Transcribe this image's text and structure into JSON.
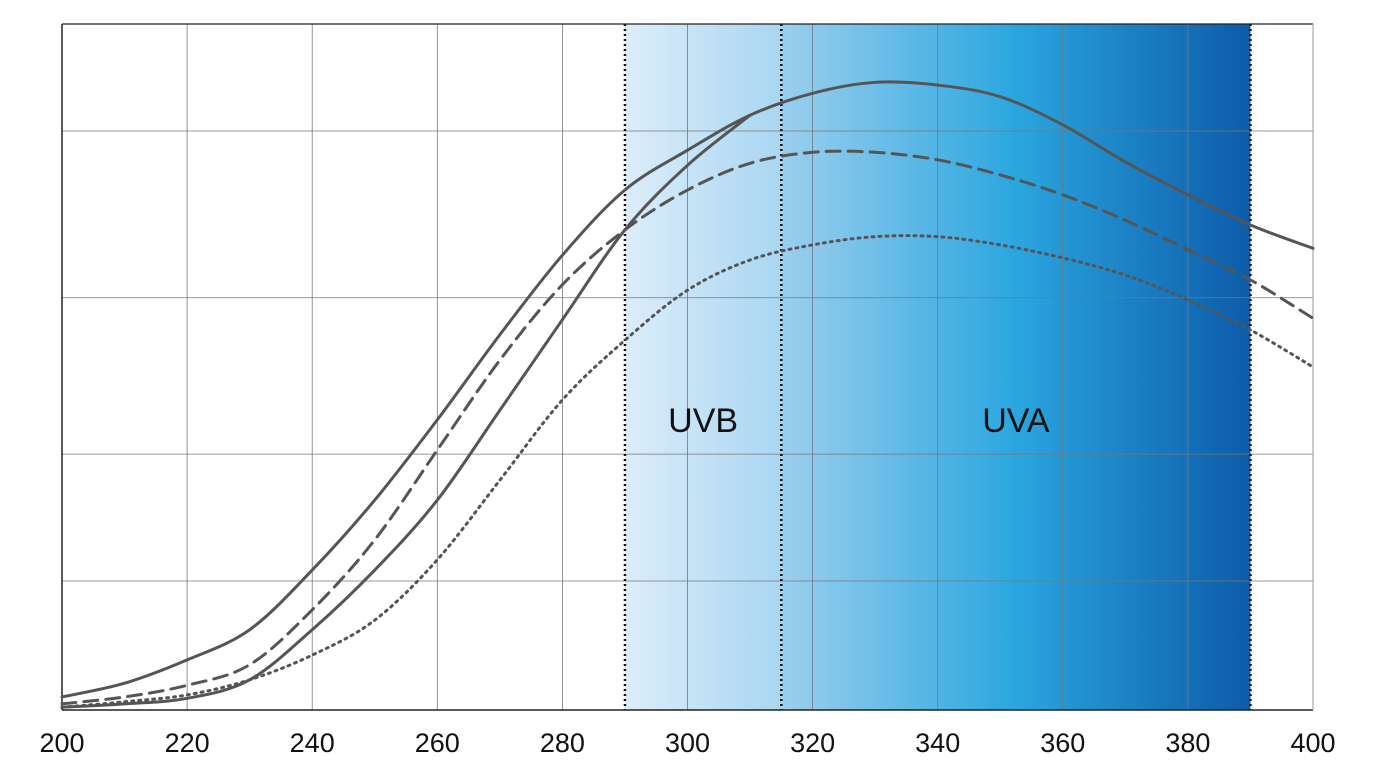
{
  "chart_data": {
    "type": "line",
    "x": [
      200,
      210,
      220,
      230,
      240,
      250,
      260,
      270,
      280,
      290,
      300,
      310,
      320,
      330,
      340,
      350,
      360,
      370,
      380,
      390,
      400
    ],
    "series": [
      {
        "color": "#555555",
        "dash": "solid",
        "values": [
          1.9,
          3.9,
          7.3,
          11.7,
          20.4,
          30.6,
          42.3,
          54.7,
          66.3,
          75.8,
          81.6,
          86.7,
          89.9,
          91.5,
          91.1,
          89.4,
          85.3,
          79.9,
          75.1,
          70.7,
          67.3
        ]
      },
      {
        "color": "#555555",
        "dash": "solid",
        "values": [
          0.4,
          0.9,
          1.7,
          4.4,
          11.7,
          20.4,
          30.6,
          43.7,
          56.9,
          70.0,
          79.4,
          86.7,
          null,
          null,
          null,
          null,
          null,
          null,
          null,
          null,
          null
        ]
      },
      {
        "color": "#555555",
        "dash": "dashed",
        "values": [
          0.9,
          1.9,
          3.6,
          6.6,
          14.6,
          24.8,
          37.9,
          51.0,
          62.0,
          70.0,
          75.8,
          79.7,
          81.3,
          81.3,
          80.2,
          78.0,
          75.1,
          71.4,
          67.1,
          62.7,
          57.1
        ]
      },
      {
        "color": "#555555",
        "dash": "dotted",
        "values": [
          0.4,
          1.2,
          2.2,
          4.4,
          8.0,
          13.1,
          21.9,
          33.5,
          45.2,
          53.9,
          61.2,
          65.6,
          67.8,
          69.0,
          69.0,
          67.8,
          65.9,
          63.4,
          59.8,
          55.4,
          50.0
        ]
      }
    ],
    "xlim": [
      200,
      400
    ],
    "xticks": [
      200,
      220,
      240,
      260,
      280,
      300,
      320,
      340,
      360,
      380,
      400
    ],
    "ylim": [
      0,
      100
    ],
    "yticks": [
      0,
      18.8,
      37.3,
      60.1,
      84.4,
      100
    ],
    "ytick_labels": false,
    "grid": true,
    "bands": [
      {
        "label": "UVB",
        "from": 290,
        "to": 315,
        "colors": [
          "#dcedf9",
          "#a9d6f2"
        ]
      },
      {
        "label": "UVA",
        "from": 315,
        "to": 390,
        "colors": [
          "#9ccfee",
          "#2aa6df",
          "#0d5ba9"
        ]
      }
    ]
  }
}
